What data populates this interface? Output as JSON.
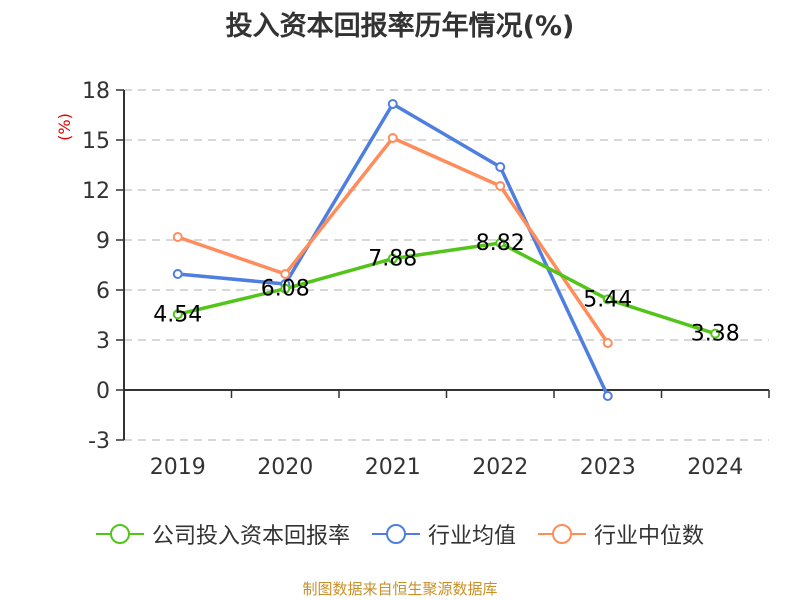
{
  "title": "投入资本回报率历年情况(%)",
  "source_note": "制图数据来自恒生聚源数据库",
  "chart_data": {
    "type": "line",
    "title": "投入资本回报率历年情况(%)",
    "xlabel": "",
    "ylabel": "(%)",
    "categories": [
      "2019",
      "2020",
      "2021",
      "2022",
      "2023",
      "2024"
    ],
    "ylim": [
      -3,
      18
    ],
    "yticks": [
      -3,
      0,
      3,
      6,
      9,
      12,
      15,
      18
    ],
    "grid": true,
    "legend_position": "bottom",
    "series": [
      {
        "name": "公司投入资本回报率",
        "color": "#52c41a",
        "values": [
          4.54,
          6.08,
          7.88,
          8.82,
          5.44,
          3.38
        ],
        "labels": [
          "4.54",
          "6.08",
          "7.88",
          "8.82",
          "5.44",
          "3.38"
        ]
      },
      {
        "name": "行业均值",
        "color": "#4e7fe0",
        "values": [
          6.96,
          6.36,
          17.16,
          13.38,
          -0.36,
          null
        ]
      },
      {
        "name": "行业中位数",
        "color": "#ff8c5a",
        "values": [
          9.18,
          6.96,
          15.12,
          12.24,
          2.82,
          null
        ]
      }
    ]
  },
  "legend": [
    {
      "label": "公司投入资本回报率",
      "color": "#52c41a"
    },
    {
      "label": "行业均值",
      "color": "#4e7fe0"
    },
    {
      "label": "行业中位数",
      "color": "#ff8c5a"
    }
  ],
  "colors": {
    "axis": "#333333",
    "grid": "#cccccc",
    "ylabel": "#e00000",
    "source": "#c8902a"
  }
}
